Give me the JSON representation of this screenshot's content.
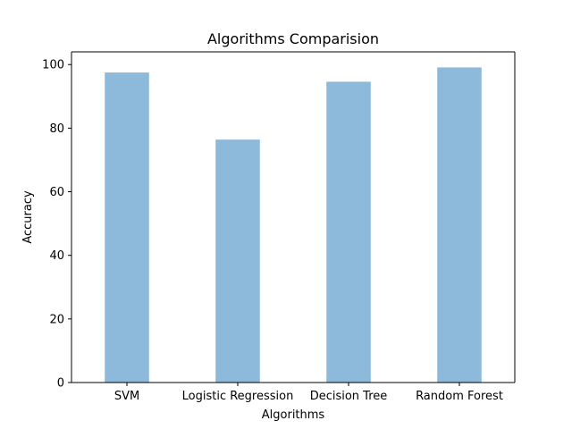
{
  "chart_data": {
    "type": "bar",
    "title": "Algorithms Comparision",
    "xlabel": "Algorithms",
    "ylabel": "Accuracy",
    "categories": [
      "SVM",
      "Logistic Regression",
      "Decision Tree",
      "Random Forest"
    ],
    "values": [
      97.5,
      76.4,
      94.6,
      99.1
    ],
    "ylim": [
      0,
      104
    ],
    "yticks": [
      0,
      20,
      40,
      60,
      80,
      100
    ],
    "bar_color": "#8db9db",
    "grid": false,
    "legend": "none"
  }
}
